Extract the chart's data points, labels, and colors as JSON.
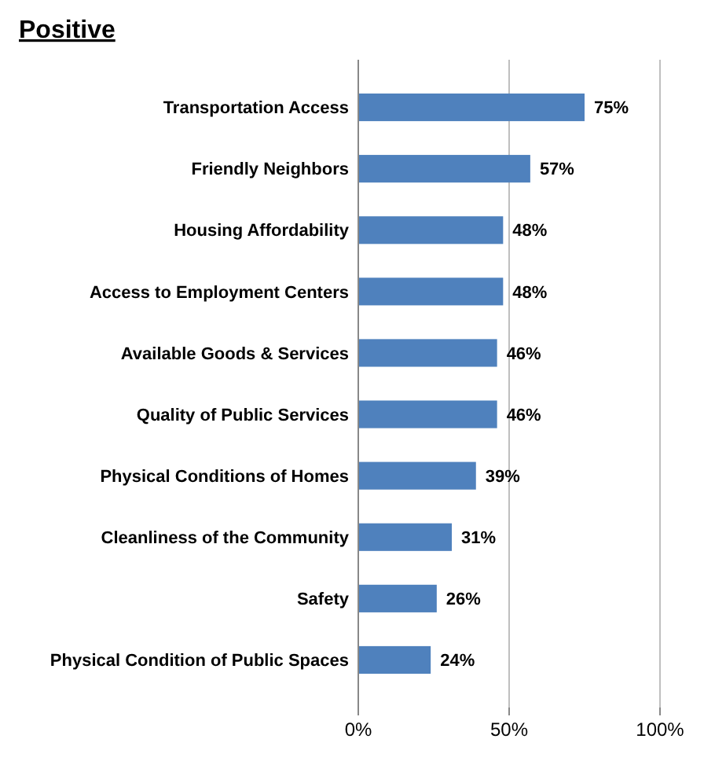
{
  "chart_data": {
    "type": "bar",
    "orientation": "horizontal",
    "title": "Positive",
    "categories": [
      "Transportation Access",
      "Friendly Neighbors",
      "Housing Affordability",
      "Access to Employment Centers",
      "Available Goods & Services",
      "Quality of Public Services",
      "Physical Conditions of Homes",
      "Cleanliness of the Community",
      "Safety",
      "Physical Condition of Public Spaces"
    ],
    "values": [
      75,
      57,
      48,
      48,
      46,
      46,
      39,
      31,
      26,
      24
    ],
    "value_labels": [
      "75%",
      "57%",
      "48%",
      "48%",
      "46%",
      "46%",
      "39%",
      "31%",
      "26%",
      "24%"
    ],
    "color": "#4f81bd",
    "xlim": [
      0,
      100
    ],
    "xticks": [
      {
        "value": 0,
        "label": "0%"
      },
      {
        "value": 50,
        "label": "50%"
      },
      {
        "value": 100,
        "label": "100%"
      }
    ],
    "grid": "x"
  }
}
